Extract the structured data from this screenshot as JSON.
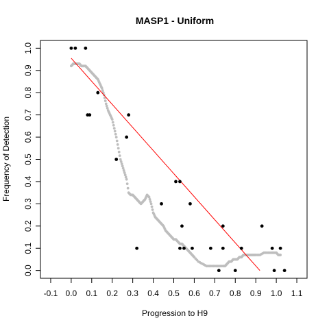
{
  "chart_data": {
    "type": "scatter",
    "title": "MASP1 - Uniform",
    "xlabel": "Progression to H9",
    "ylabel": "Frequency of Detection",
    "xlim": [
      -0.15,
      1.15
    ],
    "ylim": [
      -0.035,
      1.035
    ],
    "x_ticks": [
      -0.1,
      0.0,
      0.1,
      0.2,
      0.3,
      0.4,
      0.5,
      0.6,
      0.7,
      0.8,
      0.9,
      1.0,
      1.1
    ],
    "x_tick_labels": [
      "-0.1",
      "0.0",
      "0.1",
      "0.2",
      "0.3",
      "0.4",
      "0.5",
      "0.6",
      "0.7",
      "0.8",
      "0.9",
      "1.0",
      "1.1"
    ],
    "y_ticks": [
      0.0,
      0.1,
      0.2,
      0.3,
      0.4,
      0.5,
      0.6,
      0.7,
      0.8,
      0.9,
      1.0
    ],
    "y_tick_labels": [
      "0.0",
      "0.1",
      "0.2",
      "0.3",
      "0.4",
      "0.5",
      "0.6",
      "0.7",
      "0.8",
      "0.9",
      "1.0"
    ],
    "grid": false,
    "colors": {
      "observed": "#000000",
      "smooth": "#bebebe",
      "fit": "#ff0000"
    },
    "series": [
      {
        "kind": "points",
        "x": [
          0.0,
          0.02,
          0.07,
          0.08,
          0.09,
          0.13,
          0.22,
          0.27,
          0.28,
          0.32,
          0.44,
          0.51,
          0.53,
          0.53,
          0.54,
          0.55,
          0.58,
          0.59,
          0.68,
          0.72,
          0.74,
          0.74,
          0.8,
          0.83,
          0.93,
          0.98,
          0.99,
          1.02,
          1.04
        ],
        "y": [
          1.0,
          1.0,
          1.0,
          0.7,
          0.7,
          0.8,
          0.5,
          0.6,
          0.7,
          0.1,
          0.3,
          0.4,
          0.4,
          0.1,
          0.2,
          0.1,
          0.3,
          0.1,
          0.1,
          0.0,
          0.2,
          0.1,
          0.0,
          0.1,
          0.2,
          0.1,
          0.0,
          0.1,
          0.0
        ]
      },
      {
        "kind": "smooth",
        "x": [
          0.0,
          0.01,
          0.02,
          0.03,
          0.04,
          0.05,
          0.06,
          0.07,
          0.08,
          0.09,
          0.1,
          0.11,
          0.12,
          0.13,
          0.14,
          0.15,
          0.16,
          0.17,
          0.18,
          0.19,
          0.2,
          0.21,
          0.22,
          0.23,
          0.24,
          0.25,
          0.26,
          0.27,
          0.28,
          0.29,
          0.3,
          0.31,
          0.32,
          0.33,
          0.34,
          0.35,
          0.36,
          0.37,
          0.38,
          0.39,
          0.4,
          0.41,
          0.42,
          0.43,
          0.44,
          0.45,
          0.46,
          0.47,
          0.48,
          0.49,
          0.5,
          0.51,
          0.52,
          0.53,
          0.54,
          0.55,
          0.56,
          0.57,
          0.58,
          0.59,
          0.6,
          0.62,
          0.64,
          0.66,
          0.68,
          0.7,
          0.72,
          0.74,
          0.75,
          0.76,
          0.77,
          0.78,
          0.79,
          0.8,
          0.81,
          0.82,
          0.83,
          0.84,
          0.85,
          0.86,
          0.87,
          0.88,
          0.89,
          0.9,
          0.92,
          0.94,
          0.96,
          0.98,
          1.0,
          1.01,
          1.02
        ],
        "y": [
          0.92,
          0.93,
          0.93,
          0.93,
          0.93,
          0.92,
          0.92,
          0.92,
          0.91,
          0.9,
          0.89,
          0.88,
          0.87,
          0.86,
          0.84,
          0.82,
          0.79,
          0.75,
          0.72,
          0.7,
          0.68,
          0.64,
          0.6,
          0.55,
          0.5,
          0.47,
          0.44,
          0.41,
          0.35,
          0.34,
          0.34,
          0.33,
          0.32,
          0.31,
          0.3,
          0.31,
          0.32,
          0.34,
          0.33,
          0.3,
          0.26,
          0.24,
          0.23,
          0.22,
          0.21,
          0.2,
          0.18,
          0.17,
          0.16,
          0.15,
          0.14,
          0.14,
          0.13,
          0.12,
          0.12,
          0.11,
          0.1,
          0.09,
          0.08,
          0.07,
          0.06,
          0.04,
          0.03,
          0.02,
          0.02,
          0.02,
          0.02,
          0.02,
          0.02,
          0.03,
          0.04,
          0.04,
          0.05,
          0.05,
          0.05,
          0.06,
          0.06,
          0.07,
          0.07,
          0.07,
          0.07,
          0.07,
          0.07,
          0.07,
          0.07,
          0.08,
          0.08,
          0.08,
          0.08,
          0.07,
          0.07
        ]
      },
      {
        "kind": "line",
        "x": [
          0.0,
          0.92
        ],
        "y": [
          0.955,
          0.0
        ]
      }
    ]
  }
}
